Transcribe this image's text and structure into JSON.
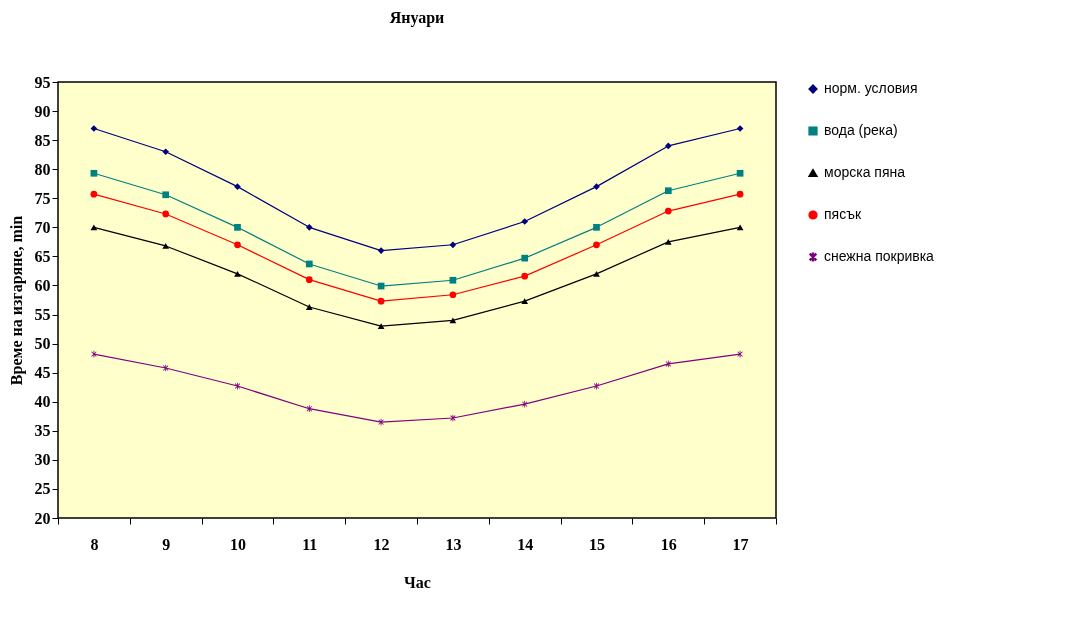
{
  "chart_data": {
    "type": "line",
    "title": "Януари",
    "xlabel": "Час",
    "ylabel": "Време на изгаряне, min",
    "categories": [
      "8",
      "9",
      "10",
      "11",
      "12",
      "13",
      "14",
      "15",
      "16",
      "17"
    ],
    "series": [
      {
        "name": "норм. условия",
        "color": "#000080",
        "marker": "diamond",
        "values": [
          87,
          83,
          77,
          70,
          66,
          67,
          71,
          77,
          84,
          87
        ]
      },
      {
        "name": "вода (река)",
        "color": "#008080",
        "marker": "square",
        "values": [
          79.3,
          75.6,
          70,
          63.7,
          59.9,
          60.9,
          64.7,
          70,
          76.3,
          79.3
        ]
      },
      {
        "name": "морска пяна",
        "color": "#000000",
        "marker": "triangle",
        "values": [
          70,
          66.8,
          62,
          56.3,
          53,
          54,
          57.3,
          62,
          67.5,
          70
        ]
      },
      {
        "name": "пясък",
        "color": "#ff0000",
        "marker": "circle",
        "values": [
          75.7,
          72.3,
          67,
          61,
          57.3,
          58.4,
          61.6,
          67,
          72.8,
          75.7
        ]
      },
      {
        "name": "снежна покривка",
        "color": "#800080",
        "marker": "cross",
        "values": [
          48.2,
          45.8,
          42.7,
          38.8,
          36.5,
          37.2,
          39.6,
          42.7,
          46.5,
          48.2
        ]
      }
    ],
    "ylim": [
      20,
      95
    ],
    "yticks": [
      20,
      25,
      30,
      35,
      40,
      45,
      50,
      55,
      60,
      65,
      70,
      75,
      80,
      85,
      90,
      95
    ],
    "grid": false,
    "legend": "right",
    "line_style": "solid"
  }
}
